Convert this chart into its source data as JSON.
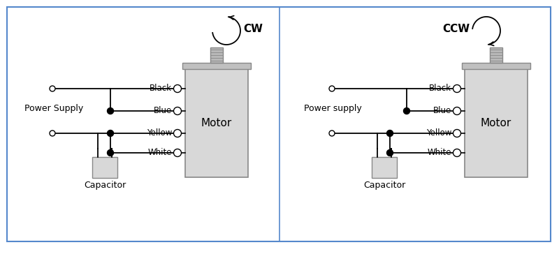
{
  "bg_color": "#ffffff",
  "border_color": "#5588cc",
  "motor_fill": "#d8d8d8",
  "motor_stroke": "#888888",
  "line_color": "#000000",
  "text_color": "#000000",
  "wire_labels": [
    "Black",
    "Blue",
    "Yellow",
    "White"
  ],
  "power_label_left": "Power Supply",
  "power_label_right": "Power supply",
  "cap_label": "Capacitor",
  "motor_label": "Motor",
  "cw_label": "CW",
  "ccw_label": "CCW"
}
